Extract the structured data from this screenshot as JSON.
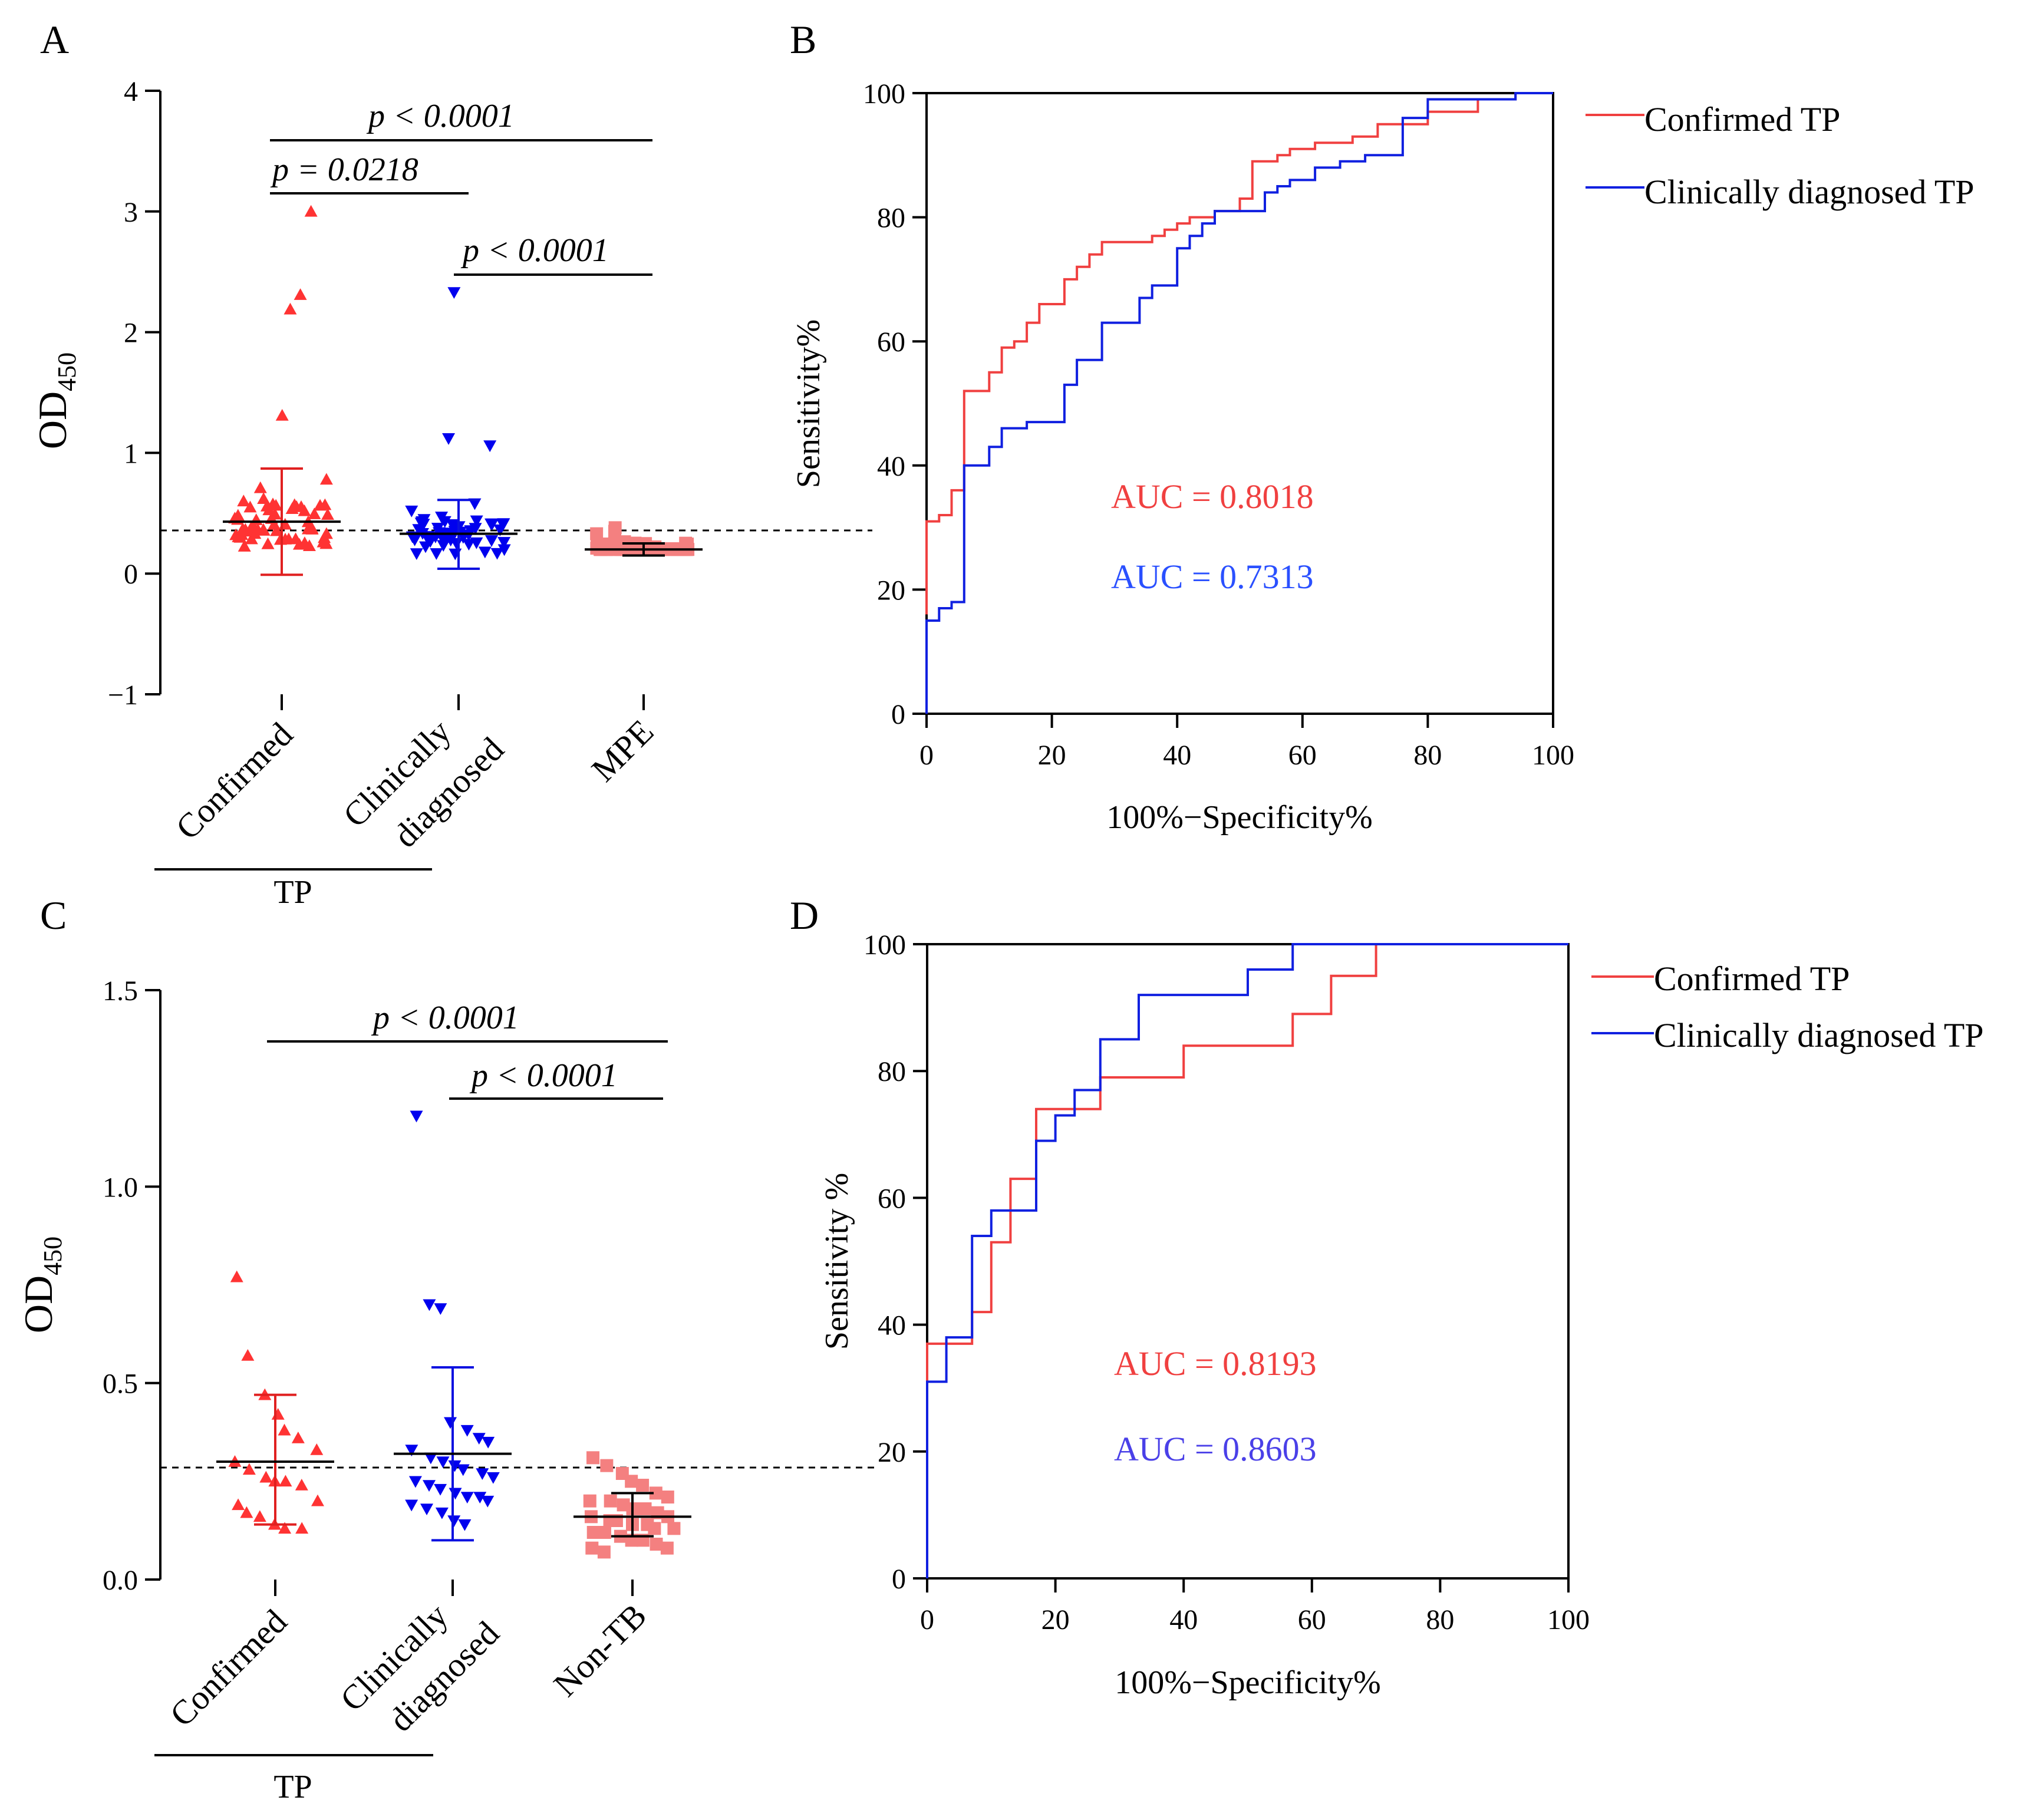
{
  "chart_data": [
    {
      "panel": "A",
      "type": "scatter",
      "ylabel": "OD",
      "ylabel_sub": "450",
      "ylim": [
        -1,
        4
      ],
      "yticks": [
        "4",
        "3",
        "2",
        "1",
        "0",
        "−1"
      ],
      "cutoff": 0.36,
      "categories": [
        "Confirmed",
        "Clinically",
        "diagnosed",
        "MPE"
      ],
      "group_label": "TP",
      "groups": [
        {
          "name": "Confirmed",
          "color": "#ff3333",
          "marker": "triangle-up",
          "mean": 0.43,
          "sd_low": -0.01,
          "sd_high": 0.87,
          "outliers": [
            3.0,
            2.31,
            2.19,
            1.31,
            0.78,
            0.71,
            0.62,
            0.55
          ]
        },
        {
          "name": "Clinically diagnosed",
          "color": "#0000ee",
          "marker": "triangle-down",
          "mean": 0.33,
          "sd_low": 0.04,
          "sd_high": 0.61,
          "outliers": [
            2.33,
            1.12,
            1.06,
            0.58,
            0.52,
            0.47
          ]
        },
        {
          "name": "MPE",
          "color": "#f48080",
          "marker": "square",
          "mean": 0.2,
          "sd_low": 0.15,
          "sd_high": 0.25,
          "outliers": [
            0.38,
            0.35,
            0.33
          ]
        }
      ],
      "comparisons": [
        {
          "text": "p < 0.0001",
          "from": "Confirmed",
          "to": "MPE"
        },
        {
          "text": "p = 0.0218",
          "from": "Confirmed",
          "to": "Clinically diagnosed"
        },
        {
          "text": "p < 0.0001",
          "from": "Clinically diagnosed",
          "to": "MPE"
        }
      ]
    },
    {
      "panel": "B",
      "type": "line",
      "xlabel": "100%−Specificity%",
      "ylabel": "Sensitivity%",
      "xlim": [
        0,
        100
      ],
      "ylim": [
        0,
        100
      ],
      "xticks": [
        "0",
        "20",
        "40",
        "60",
        "80",
        "100"
      ],
      "yticks": [
        "0",
        "20",
        "40",
        "60",
        "80",
        "100"
      ],
      "series": [
        {
          "name": "Confirmed TP",
          "color": "#f04040",
          "auc": "AUC = 0.8018",
          "x": [
            0,
            0,
            2,
            2,
            4,
            4,
            6,
            6,
            10,
            10,
            12,
            12,
            14,
            14,
            16,
            16,
            18,
            18,
            22,
            22,
            24,
            24,
            26,
            26,
            28,
            28,
            36,
            36,
            38,
            38,
            40,
            40,
            42,
            42,
            46,
            46,
            50,
            50,
            52,
            52,
            56,
            56,
            58,
            58,
            62,
            62,
            68,
            68,
            72,
            72,
            80,
            80,
            88,
            88,
            94,
            94,
            100
          ],
          "y": [
            16,
            31,
            31,
            32,
            32,
            36,
            36,
            52,
            52,
            55,
            55,
            59,
            59,
            60,
            60,
            63,
            63,
            66,
            66,
            70,
            70,
            72,
            72,
            74,
            74,
            76,
            76,
            77,
            77,
            78,
            78,
            79,
            79,
            80,
            80,
            81,
            81,
            83,
            83,
            89,
            89,
            90,
            90,
            91,
            91,
            92,
            92,
            93,
            93,
            95,
            95,
            97,
            97,
            99,
            99,
            100,
            100
          ]
        },
        {
          "name": "Clinically diagnosed TP",
          "color": "#1020e0",
          "auc": "AUC = 0.7313",
          "x": [
            0,
            0,
            2,
            2,
            4,
            4,
            6,
            6,
            10,
            10,
            12,
            12,
            16,
            16,
            22,
            22,
            24,
            24,
            26,
            26,
            28,
            28,
            34,
            34,
            36,
            36,
            40,
            40,
            42,
            42,
            44,
            44,
            46,
            46,
            54,
            54,
            56,
            56,
            58,
            58,
            62,
            62,
            66,
            66,
            70,
            70,
            72,
            72,
            76,
            76,
            80,
            80,
            94,
            94,
            100
          ],
          "y": [
            0,
            15,
            15,
            17,
            17,
            18,
            18,
            40,
            40,
            43,
            43,
            46,
            46,
            47,
            47,
            53,
            53,
            57,
            57,
            57,
            57,
            63,
            63,
            67,
            67,
            69,
            69,
            75,
            75,
            77,
            77,
            79,
            79,
            81,
            81,
            84,
            84,
            85,
            85,
            86,
            86,
            88,
            88,
            89,
            89,
            90,
            90,
            90,
            90,
            96,
            96,
            99,
            99,
            100,
            100
          ]
        }
      ]
    },
    {
      "panel": "C",
      "type": "scatter",
      "ylabel": "OD",
      "ylabel_sub": "450",
      "ylim": [
        0,
        1.5
      ],
      "yticks": [
        "1.5",
        "1.0",
        "0.5",
        "0.0"
      ],
      "cutoff": 0.28,
      "categories": [
        "Confirmed",
        "Clinically",
        "diagnosed",
        "Non-TB"
      ],
      "group_label": "TP",
      "groups": [
        {
          "name": "Confirmed",
          "color": "#ff3333",
          "marker": "triangle-up",
          "mean": 0.3,
          "sd_low": 0.14,
          "sd_high": 0.47,
          "points": [
            0.77,
            0.57,
            0.47,
            0.42,
            0.38,
            0.36,
            0.33,
            0.3,
            0.28,
            0.26,
            0.25,
            0.25,
            0.24,
            0.2,
            0.19,
            0.17,
            0.16,
            0.14,
            0.13,
            0.13
          ]
        },
        {
          "name": "Clinically diagnosed",
          "color": "#0000ee",
          "marker": "triangle-down",
          "mean": 0.32,
          "sd_low": 0.1,
          "sd_high": 0.54,
          "points": [
            1.18,
            0.7,
            0.69,
            0.4,
            0.38,
            0.36,
            0.35,
            0.33,
            0.31,
            0.3,
            0.29,
            0.28,
            0.27,
            0.26,
            0.25,
            0.24,
            0.23,
            0.22,
            0.21,
            0.21,
            0.2,
            0.19,
            0.18,
            0.17,
            0.15,
            0.14
          ]
        },
        {
          "name": "Non-TB",
          "color": "#f48080",
          "marker": "square",
          "mean": 0.16,
          "sd_low": 0.11,
          "sd_high": 0.22,
          "points": [
            0.31,
            0.29,
            0.27,
            0.25,
            0.24,
            0.22,
            0.21,
            0.2,
            0.2,
            0.19,
            0.18,
            0.18,
            0.17,
            0.16,
            0.16,
            0.15,
            0.15,
            0.14,
            0.14,
            0.13,
            0.13,
            0.12,
            0.12,
            0.11,
            0.1,
            0.1,
            0.09,
            0.08,
            0.08,
            0.07
          ]
        }
      ],
      "comparisons": [
        {
          "text": "p < 0.0001",
          "from": "Confirmed",
          "to": "Non-TB"
        },
        {
          "text": "p < 0.0001",
          "from": "Clinically diagnosed",
          "to": "Non-TB"
        }
      ]
    },
    {
      "panel": "D",
      "type": "line",
      "xlabel": "100%−Specificity%",
      "ylabel": "Sensitivity %",
      "xlim": [
        0,
        100
      ],
      "ylim": [
        0,
        100
      ],
      "xticks": [
        "0",
        "20",
        "40",
        "60",
        "80",
        "100"
      ],
      "yticks": [
        "0",
        "20",
        "40",
        "60",
        "80",
        "100"
      ],
      "series": [
        {
          "name": "Confirmed TP",
          "color": "#f04040",
          "auc": "AUC = 0.8193",
          "x": [
            0,
            0,
            3,
            3,
            7,
            7,
            10,
            10,
            13,
            13,
            17,
            17,
            23,
            23,
            27,
            27,
            40,
            40,
            57,
            57,
            63,
            63,
            70,
            70,
            100
          ],
          "y": [
            30,
            37,
            37,
            37,
            37,
            42,
            42,
            53,
            53,
            63,
            63,
            74,
            74,
            74,
            74,
            79,
            79,
            84,
            84,
            89,
            89,
            95,
            95,
            100,
            100
          ]
        },
        {
          "name": "Clinically diagnosed TP",
          "color": "#1020e0",
          "auc": "AUC = 0.8603",
          "x": [
            0,
            0,
            3,
            3,
            7,
            7,
            10,
            10,
            17,
            17,
            20,
            20,
            23,
            23,
            27,
            27,
            33,
            33,
            50,
            50,
            57,
            57,
            100
          ],
          "y": [
            0,
            31,
            31,
            38,
            38,
            54,
            54,
            58,
            58,
            69,
            69,
            73,
            73,
            77,
            77,
            85,
            85,
            92,
            92,
            96,
            96,
            100,
            100
          ]
        }
      ]
    }
  ]
}
